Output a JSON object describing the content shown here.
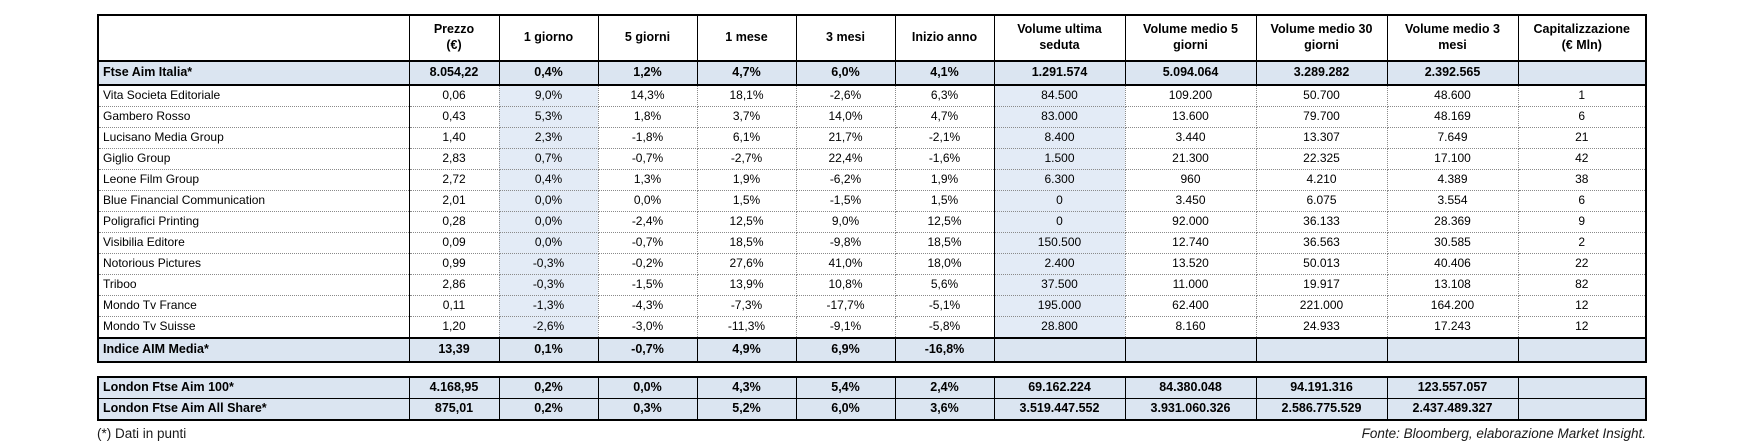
{
  "colors": {
    "highlight_row": "#dbe5f1",
    "highlight_col": "#e3ebf6",
    "border": "#000000"
  },
  "main_table": {
    "headers": [
      "",
      "Prezzo\n(€)",
      "1 giorno",
      "5 giorni",
      "1 mese",
      "3 mesi",
      "Inizio anno",
      "Volume ultima\nseduta",
      "Volume medio 5\ngiorni",
      "Volume medio 30\ngiorni",
      "Volume medio 3\nmesi",
      "Capitalizzazione\n(€ Mln)"
    ],
    "rows": [
      {
        "type": "index",
        "cells": [
          "Ftse Aim Italia*",
          "8.054,22",
          "0,4%",
          "1,2%",
          "4,7%",
          "6,0%",
          "4,1%",
          "1.291.574",
          "5.094.064",
          "3.289.282",
          "2.392.565",
          ""
        ]
      },
      {
        "type": "company",
        "cells": [
          "Vita Societa Editoriale",
          "0,06",
          "9,0%",
          "14,3%",
          "18,1%",
          "-2,6%",
          "6,3%",
          "84.500",
          "109.200",
          "50.700",
          "48.600",
          "1"
        ]
      },
      {
        "type": "company",
        "cells": [
          "Gambero Rosso",
          "0,43",
          "5,3%",
          "1,8%",
          "3,7%",
          "14,0%",
          "4,7%",
          "83.000",
          "13.600",
          "79.700",
          "48.169",
          "6"
        ]
      },
      {
        "type": "company",
        "cells": [
          "Lucisano Media Group",
          "1,40",
          "2,3%",
          "-1,8%",
          "6,1%",
          "21,7%",
          "-2,1%",
          "8.400",
          "3.440",
          "13.307",
          "7.649",
          "21"
        ]
      },
      {
        "type": "company",
        "cells": [
          "Giglio Group",
          "2,83",
          "0,7%",
          "-0,7%",
          "-2,7%",
          "22,4%",
          "-1,6%",
          "1.500",
          "21.300",
          "22.325",
          "17.100",
          "42"
        ]
      },
      {
        "type": "company",
        "cells": [
          "Leone Film Group",
          "2,72",
          "0,4%",
          "1,3%",
          "1,9%",
          "-6,2%",
          "1,9%",
          "6.300",
          "960",
          "4.210",
          "4.389",
          "38"
        ]
      },
      {
        "type": "company",
        "cells": [
          "Blue Financial Communication",
          "2,01",
          "0,0%",
          "0,0%",
          "1,5%",
          "-1,5%",
          "1,5%",
          "0",
          "3.450",
          "6.075",
          "3.554",
          "6"
        ]
      },
      {
        "type": "company",
        "cells": [
          "Poligrafici Printing",
          "0,28",
          "0,0%",
          "-2,4%",
          "12,5%",
          "9,0%",
          "12,5%",
          "0",
          "92.000",
          "36.133",
          "28.369",
          "9"
        ]
      },
      {
        "type": "company",
        "cells": [
          "Visibilia Editore",
          "0,09",
          "0,0%",
          "-0,7%",
          "18,5%",
          "-9,8%",
          "18,5%",
          "150.500",
          "12.740",
          "36.563",
          "30.585",
          "2"
        ]
      },
      {
        "type": "company",
        "cells": [
          "Notorious Pictures",
          "0,99",
          "-0,3%",
          "-0,2%",
          "27,6%",
          "41,0%",
          "18,0%",
          "2.400",
          "13.520",
          "50.013",
          "40.406",
          "22"
        ]
      },
      {
        "type": "company",
        "cells": [
          "Triboo",
          "2,86",
          "-0,3%",
          "-1,5%",
          "13,9%",
          "10,8%",
          "5,6%",
          "37.500",
          "11.000",
          "19.917",
          "13.108",
          "82"
        ]
      },
      {
        "type": "company",
        "cells": [
          "Mondo Tv France",
          "0,11",
          "-1,3%",
          "-4,3%",
          "-7,3%",
          "-17,7%",
          "-5,1%",
          "195.000",
          "62.400",
          "221.000",
          "164.200",
          "12"
        ]
      },
      {
        "type": "company",
        "cells": [
          "Mondo Tv Suisse",
          "1,20",
          "-2,6%",
          "-3,0%",
          "-11,3%",
          "-9,1%",
          "-5,8%",
          "28.800",
          "8.160",
          "24.933",
          "17.243",
          "12"
        ]
      },
      {
        "type": "index",
        "cells": [
          "Indice AIM Media*",
          "13,39",
          "0,1%",
          "-0,7%",
          "4,9%",
          "6,9%",
          "-16,8%",
          "",
          "",
          "",
          "",
          ""
        ]
      }
    ]
  },
  "london_table": {
    "rows": [
      {
        "type": "index",
        "cells": [
          "London Ftse Aim 100*",
          "4.168,95",
          "0,2%",
          "0,0%",
          "4,3%",
          "5,4%",
          "2,4%",
          "69.162.224",
          "84.380.048",
          "94.191.316",
          "123.557.057",
          ""
        ]
      },
      {
        "type": "index",
        "cells": [
          "London Ftse Aim All Share*",
          "875,01",
          "0,2%",
          "0,3%",
          "5,2%",
          "6,0%",
          "3,6%",
          "3.519.447.552",
          "3.931.060.326",
          "2.586.775.529",
          "2.437.489.327",
          ""
        ]
      }
    ]
  },
  "footnotes": {
    "left": "(*) Dati in punti",
    "right": "Fonte: Bloomberg, elaborazione Market Insight."
  }
}
